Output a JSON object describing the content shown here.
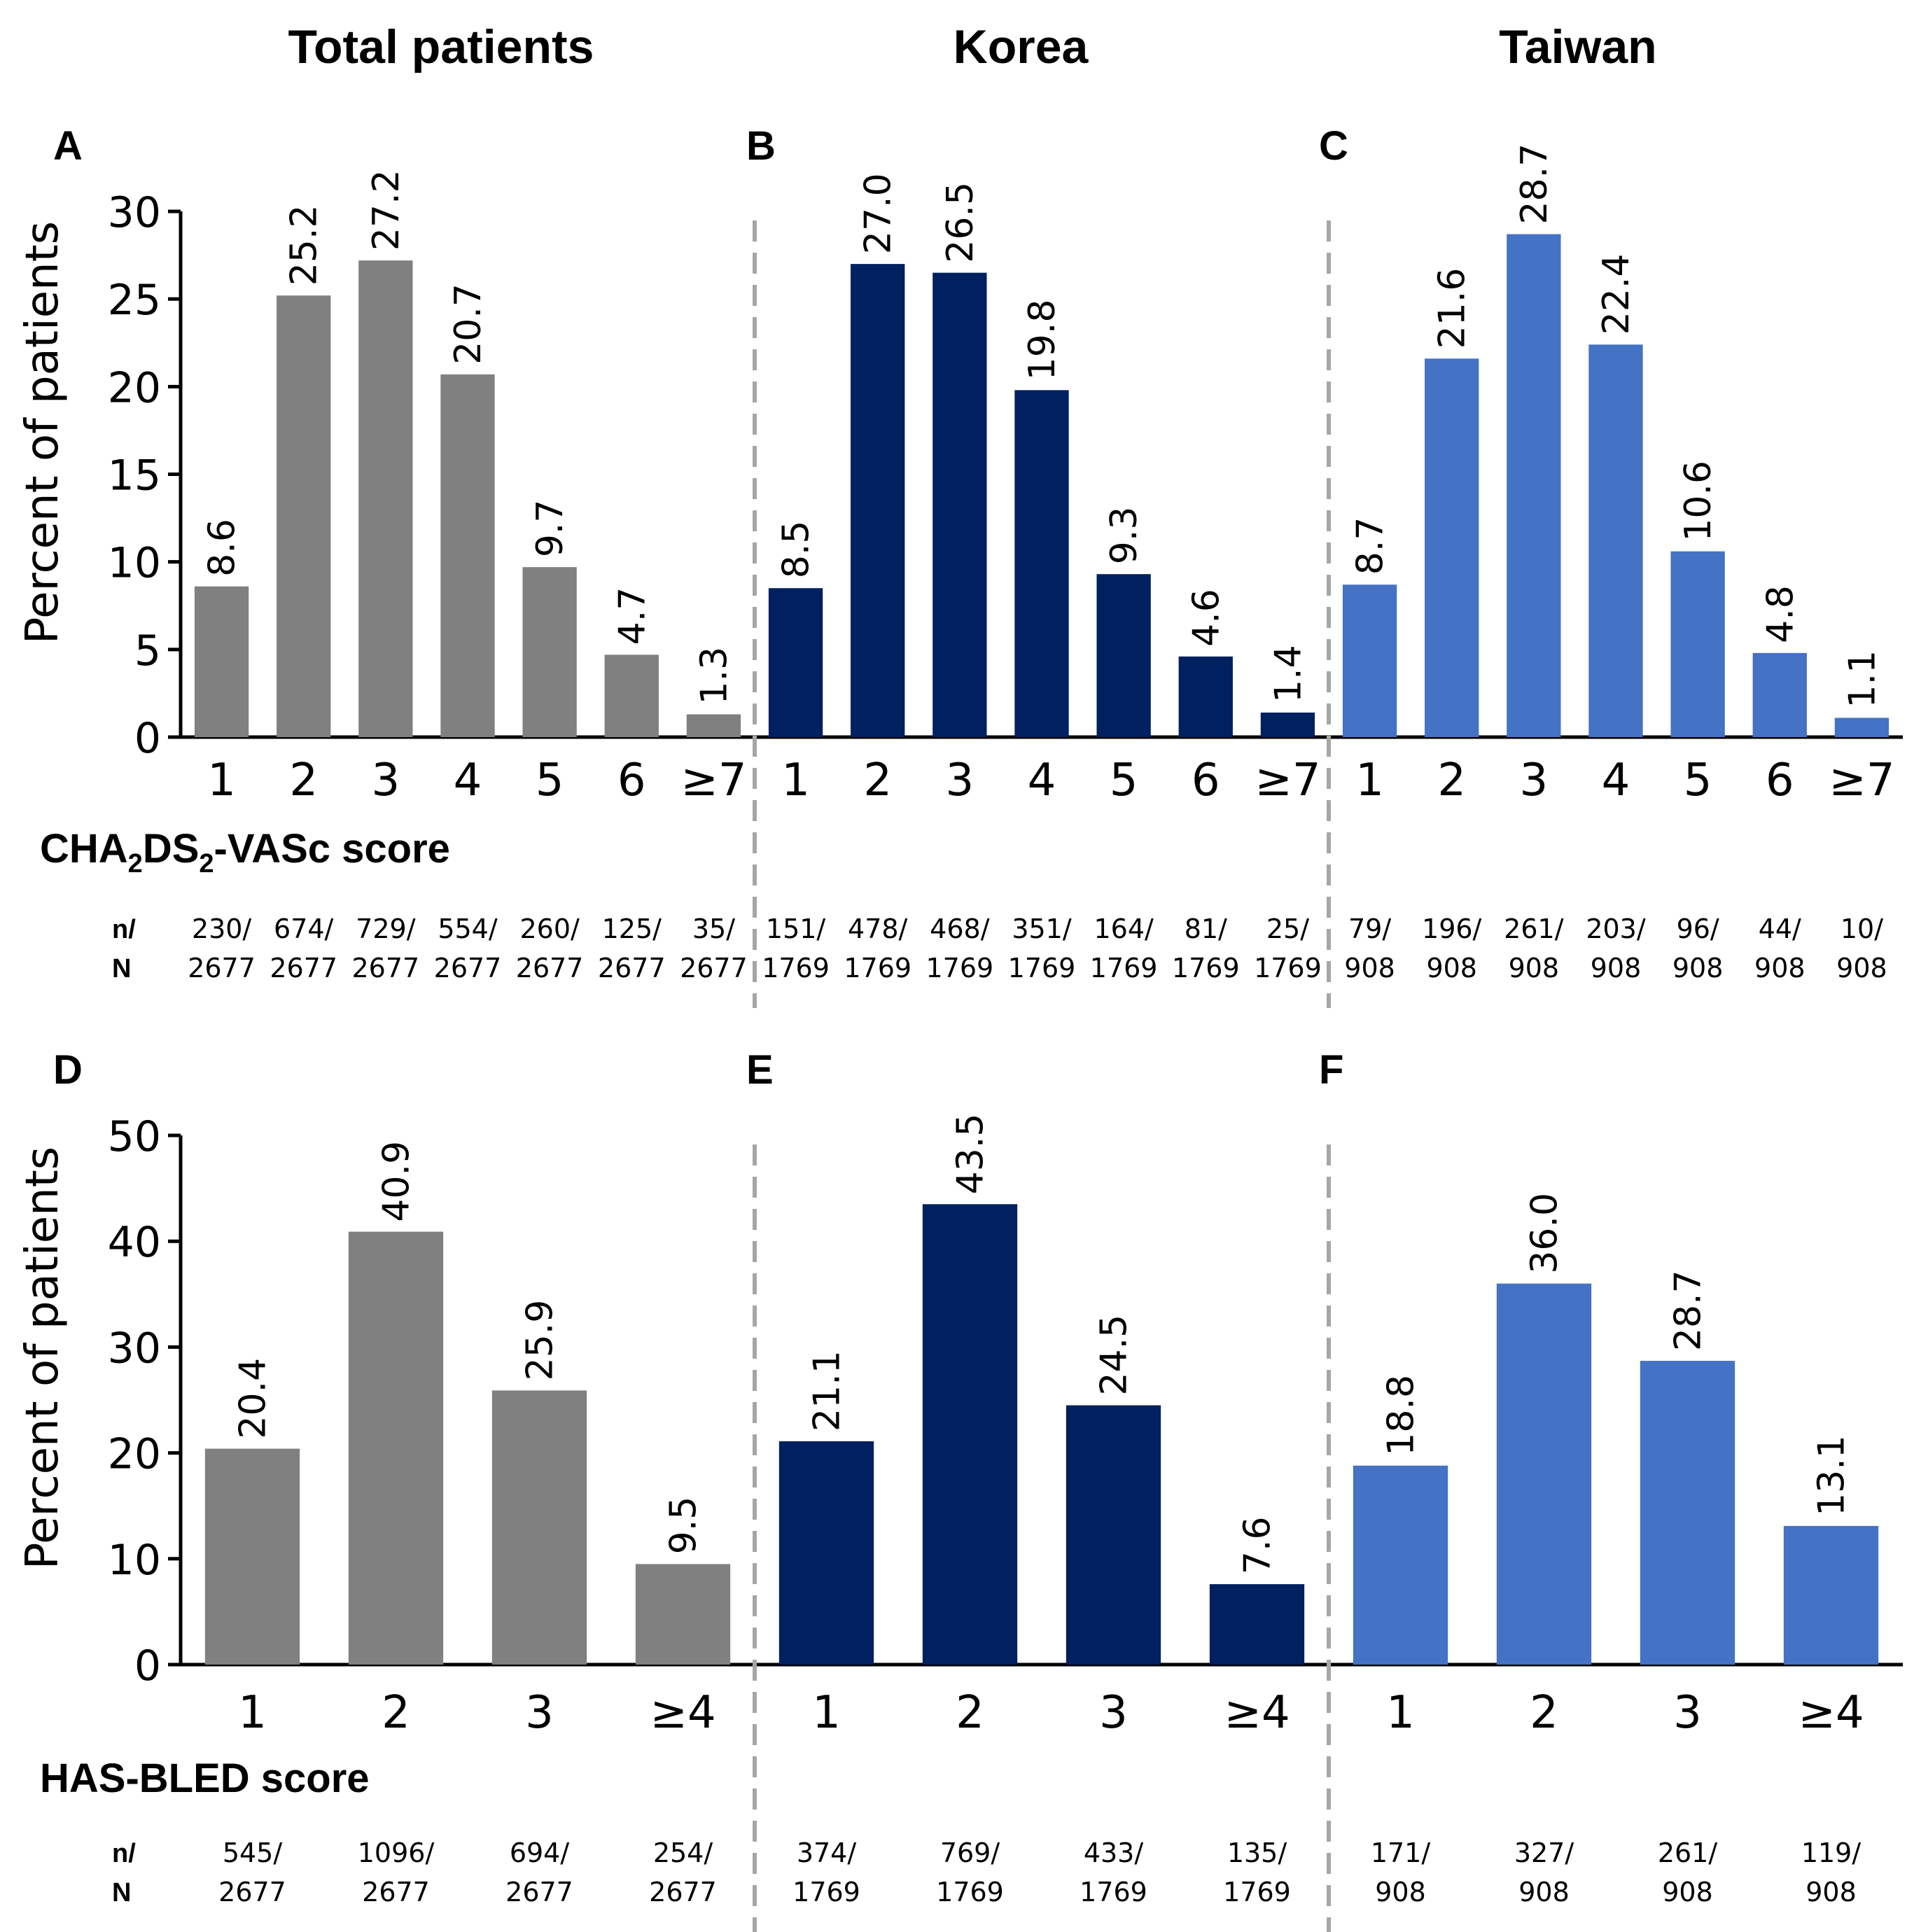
{
  "column_titles": [
    "Total patients",
    "Korea",
    "Taiwan"
  ],
  "colors": {
    "total": "#808080",
    "korea": "#002060",
    "taiwan": "#4472C4",
    "divider": "#A6A6A6"
  },
  "rows": [
    {
      "score_label": "CHA2DS2-VASc score",
      "score_label_parts": {
        "a": "CHA",
        "sub1": "2",
        "b": "DS",
        "sub2": "2",
        "c": "-VASc score"
      },
      "n_label": "n/",
      "N_label": "N"
    },
    {
      "score_label": "HAS-BLED score",
      "n_label": "n/",
      "N_label": "N"
    }
  ],
  "chart_data": [
    {
      "type": "bar",
      "panel": "A",
      "title": "Total patients",
      "color": "#808080",
      "xlabel": "CHA2DS2-VASc score",
      "ylabel": "Percent of patients",
      "ylim": [
        0,
        30
      ],
      "yticks": [
        0,
        5,
        10,
        15,
        20,
        25,
        30
      ],
      "categories": [
        "1",
        "2",
        "3",
        "4",
        "5",
        "6",
        "≥7"
      ],
      "values": [
        8.6,
        25.2,
        27.2,
        20.7,
        9.7,
        4.7,
        1.3
      ],
      "value_labels": [
        "8.6",
        "25.2",
        "27.2",
        "20.7",
        "9.7",
        "4.7",
        "1.3"
      ],
      "n": [
        "230/",
        "674/",
        "729/",
        "554/",
        "260/",
        "125/",
        "35/"
      ],
      "N": [
        "2677",
        "2677",
        "2677",
        "2677",
        "2677",
        "2677",
        "2677"
      ]
    },
    {
      "type": "bar",
      "panel": "B",
      "title": "Korea",
      "color": "#002060",
      "xlabel": "CHA2DS2-VASc score",
      "ylabel": "Percent of patients",
      "ylim": [
        0,
        30
      ],
      "categories": [
        "1",
        "2",
        "3",
        "4",
        "5",
        "6",
        "≥7"
      ],
      "values": [
        8.5,
        27.0,
        26.5,
        19.8,
        9.3,
        4.6,
        1.4
      ],
      "value_labels": [
        "8.5",
        "27.0",
        "26.5",
        "19.8",
        "9.3",
        "4.6",
        "1.4"
      ],
      "n": [
        "151/",
        "478/",
        "468/",
        "351/",
        "164/",
        "81/",
        "25/"
      ],
      "N": [
        "1769",
        "1769",
        "1769",
        "1769",
        "1769",
        "1769",
        "1769"
      ]
    },
    {
      "type": "bar",
      "panel": "C",
      "title": "Taiwan",
      "color": "#4472C4",
      "xlabel": "CHA2DS2-VASc score",
      "ylabel": "Percent of patients",
      "ylim": [
        0,
        30
      ],
      "categories": [
        "1",
        "2",
        "3",
        "4",
        "5",
        "6",
        "≥7"
      ],
      "values": [
        8.7,
        21.6,
        28.7,
        22.4,
        10.6,
        4.8,
        1.1
      ],
      "value_labels": [
        "8.7",
        "21.6",
        "28.7",
        "22.4",
        "10.6",
        "4.8",
        "1.1"
      ],
      "n": [
        "79/",
        "196/",
        "261/",
        "203/",
        "96/",
        "44/",
        "10/"
      ],
      "N": [
        "908",
        "908",
        "908",
        "908",
        "908",
        "908",
        "908"
      ]
    },
    {
      "type": "bar",
      "panel": "D",
      "title": "Total patients",
      "color": "#808080",
      "xlabel": "HAS-BLED score",
      "ylabel": "Percent of patients",
      "ylim": [
        0,
        50
      ],
      "yticks": [
        0,
        10,
        20,
        30,
        40,
        50
      ],
      "categories": [
        "1",
        "2",
        "3",
        "≥4"
      ],
      "values": [
        20.4,
        40.9,
        25.9,
        9.5
      ],
      "value_labels": [
        "20.4",
        "40.9",
        "25.9",
        "9.5"
      ],
      "n": [
        "545/",
        "1096/",
        "694/",
        "254/"
      ],
      "N": [
        "2677",
        "2677",
        "2677",
        "2677"
      ]
    },
    {
      "type": "bar",
      "panel": "E",
      "title": "Korea",
      "color": "#002060",
      "xlabel": "HAS-BLED score",
      "ylabel": "Percent of patients",
      "ylim": [
        0,
        50
      ],
      "categories": [
        "1",
        "2",
        "3",
        "≥4"
      ],
      "values": [
        21.1,
        43.5,
        24.5,
        7.6
      ],
      "value_labels": [
        "21.1",
        "43.5",
        "24.5",
        "7.6"
      ],
      "n": [
        "374/",
        "769/",
        "433/",
        "135/"
      ],
      "N": [
        "1769",
        "1769",
        "1769",
        "1769"
      ]
    },
    {
      "type": "bar",
      "panel": "F",
      "title": "Taiwan",
      "color": "#4472C4",
      "xlabel": "HAS-BLED score",
      "ylabel": "Percent of patients",
      "ylim": [
        0,
        50
      ],
      "categories": [
        "1",
        "2",
        "3",
        "≥4"
      ],
      "values": [
        18.8,
        36.0,
        28.7,
        13.1
      ],
      "value_labels": [
        "18.8",
        "36.0",
        "28.7",
        "13.1"
      ],
      "n": [
        "171/",
        "327/",
        "261/",
        "119/"
      ],
      "N": [
        "908",
        "908",
        "908",
        "908"
      ]
    }
  ]
}
